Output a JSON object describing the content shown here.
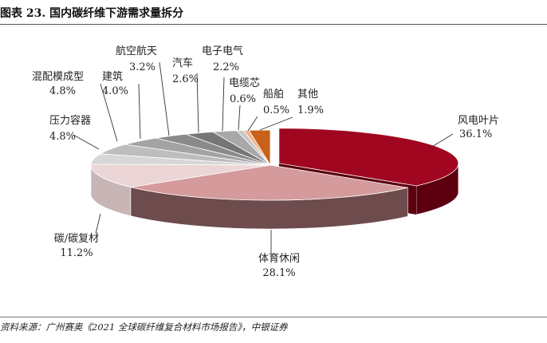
{
  "figure": {
    "title": "图表 23. 国内碳纤维下游需求量拆分",
    "source": "资料来源：广州赛奥《2021 全球碳纤维复合材料市场报告》，中银证券"
  },
  "chart_data": {
    "type": "pie",
    "title": "",
    "style": "3d-exploded",
    "unit": "%",
    "slices": [
      {
        "name": "风电叶片",
        "value": 36.1,
        "label": "36.1%",
        "color": "#A0061F",
        "side": "#5C0010"
      },
      {
        "name": "体育休闲",
        "value": 28.1,
        "label": "28.1%",
        "color": "#D49A9C",
        "side": "#6E4B4C"
      },
      {
        "name": "碳/碳复材",
        "value": 11.2,
        "label": "11.2%",
        "color": "#EBD5D6",
        "side": "#C8B5B5"
      },
      {
        "name": "压力容器",
        "value": 4.8,
        "label": "4.8%",
        "color": "#D7D7D7",
        "side": "#B5B5B5"
      },
      {
        "name": "混配模成型",
        "value": 4.8,
        "label": "4.8%",
        "color": "#BDBDBD",
        "side": "#9C9C9C"
      },
      {
        "name": "建筑",
        "value": 4.0,
        "label": "4.0%",
        "color": "#A3A3A3",
        "side": "#858585"
      },
      {
        "name": "航空航天",
        "value": 3.2,
        "label": "3.2%",
        "color": "#8A8A8A",
        "side": "#6E6E6E"
      },
      {
        "name": "汽车",
        "value": 2.6,
        "label": "2.6%",
        "color": "#767676",
        "side": "#5E5E5E"
      },
      {
        "name": "电子电气",
        "value": 2.2,
        "label": "2.2%",
        "color": "#A8A8A8",
        "side": "#888888"
      },
      {
        "name": "电缆芯",
        "value": 0.6,
        "label": "0.6%",
        "color": "#C6C6C6",
        "side": "#A2A2A2"
      },
      {
        "name": "船舶",
        "value": 0.5,
        "label": "0.5%",
        "color": "#F2B48C",
        "side": "#C98B63"
      },
      {
        "name": "其他",
        "value": 1.9,
        "label": "1.9%",
        "color": "#C8611A",
        "side": "#8E3F0C"
      }
    ]
  }
}
